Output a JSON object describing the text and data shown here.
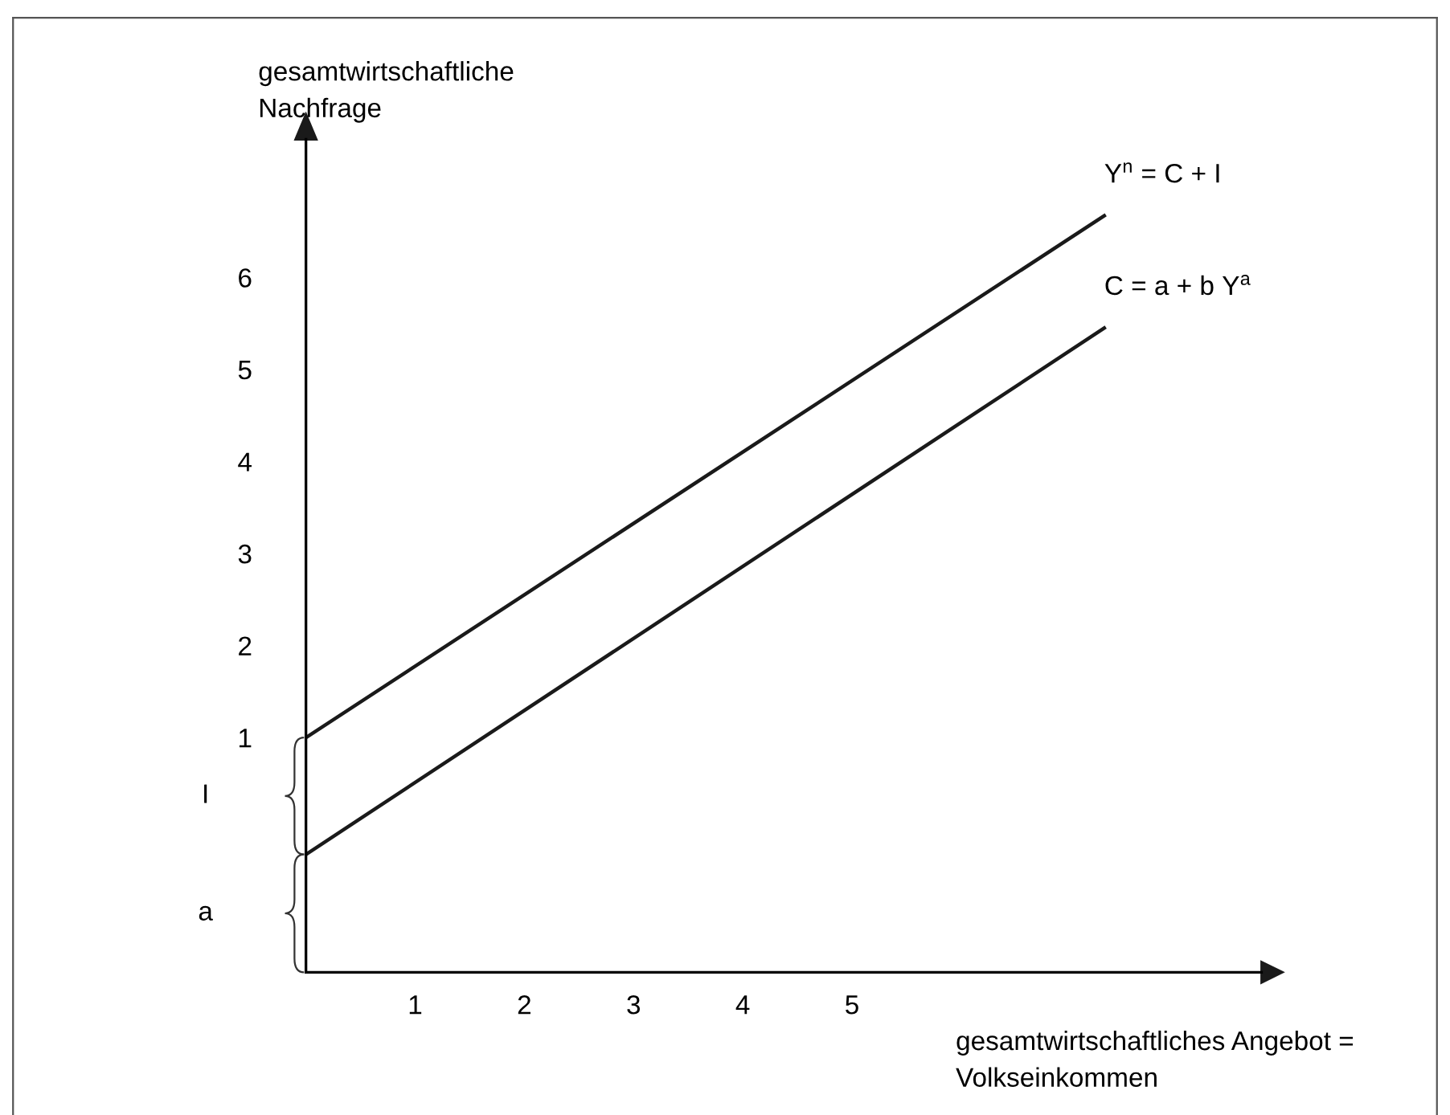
{
  "chart_data": {
    "type": "line",
    "xlabel": "gesamtwirtschaftliches Angebot =\nVolkseinkommen",
    "ylabel": "gesamtwirtschaftliche\nNachfrage",
    "x": [
      0,
      7.31
    ],
    "series": [
      {
        "name": "Y$^{n}$ = C + I",
        "color": "#1a1a1a",
        "values": [
          1,
          6.67
        ]
      },
      {
        "name": "C = a + b Y$^{a}$",
        "color": "#1a1a1a",
        "values": [
          -0.27,
          5.45
        ]
      }
    ],
    "xlim": [
      0,
      8.75
    ],
    "ylim": [
      -1.55,
      7.5
    ],
    "xticks": [
      1,
      2,
      3,
      4,
      5
    ],
    "yticks": [
      1,
      2,
      3,
      4,
      5,
      6
    ],
    "annotations": [
      "I",
      "a"
    ],
    "grid": false,
    "legend": false,
    "marker": "none",
    "line_style": "solid"
  }
}
